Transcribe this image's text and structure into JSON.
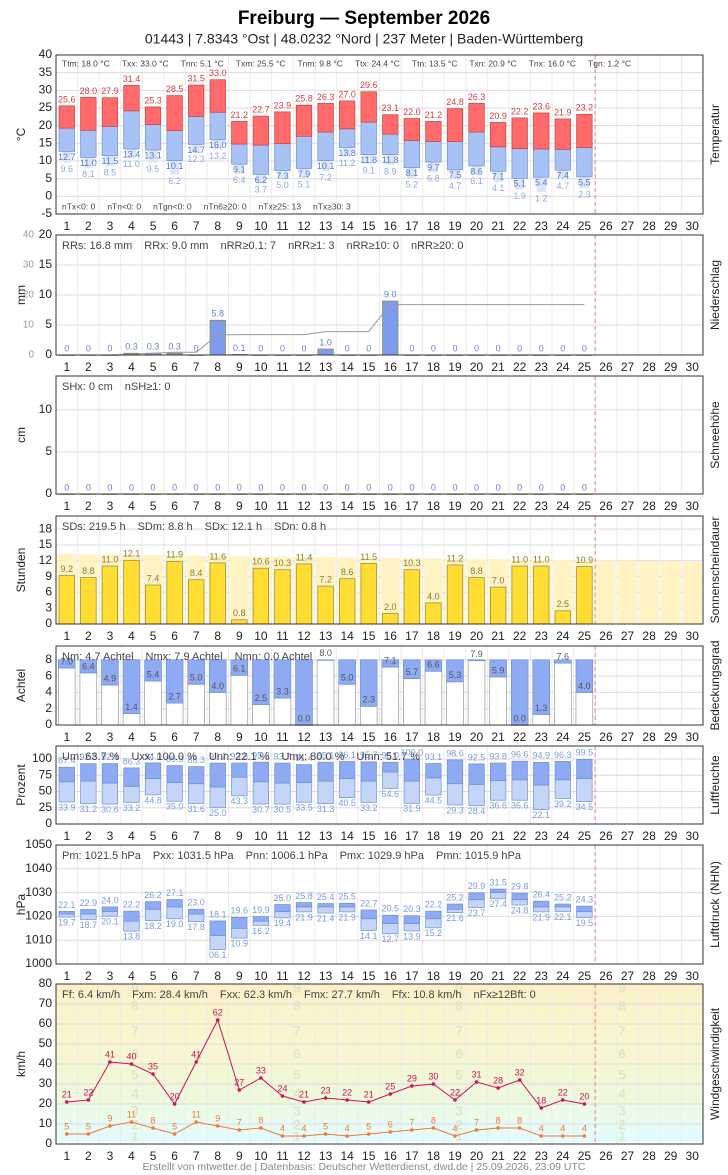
{
  "title": "Freiburg  —  September 2026",
  "subtitle": "01443  |  7.8343 °Ost  |  48.0232 °Nord  |  237 Meter  |  Baden-Württemberg",
  "footer": "Erstellt von mtwetter.de | Datenbasis: Deutscher Wetterdienst, dwd.de | 25.09.2026, 23:09 UTC",
  "days": [
    "1",
    "2",
    "3",
    "4",
    "5",
    "6",
    "7",
    "8",
    "9",
    "10",
    "11",
    "12",
    "13",
    "14",
    "15",
    "16",
    "17",
    "18",
    "19",
    "20",
    "21",
    "22",
    "23",
    "24",
    "25",
    "26",
    "27",
    "28",
    "29",
    "30"
  ],
  "chart_data": [
    {
      "type": "rangebar",
      "axis_label": "°C",
      "side_label": "Temperatur",
      "ylim": [
        -5,
        40
      ],
      "yticks": [
        -5,
        0,
        5,
        10,
        15,
        20,
        25,
        30,
        35,
        40
      ],
      "grid": true,
      "colors": [
        "#ff6b6b",
        "#a9c2f5",
        "#dce6fb"
      ],
      "label_colors": [
        "#d04040",
        "#5577cc",
        "#8fa8e0"
      ],
      "stats": [
        "Ttm: 18.0 °C",
        "Txx: 33.0 °C",
        "Tnn: 5.1 °C",
        "Txm: 25.5 °C",
        "Tnm: 9.8 °C",
        "Ttx: 24.4 °C",
        "Ttn: 13.5 °C",
        "Txn: 20.9 °C",
        "Tnx: 16.0 °C",
        "Tgn: 1.2 °C"
      ],
      "stats2": [
        "nTx<0: 0",
        "nTn<0: 0",
        "nTgn<0: 0",
        "nTn6≥20: 0",
        "nTx≥25: 13",
        "nTx≥30: 3"
      ],
      "max": [
        25.6,
        28.0,
        27.9,
        31.4,
        25.3,
        28.5,
        31.5,
        33.0,
        21.2,
        22.7,
        23.9,
        25.8,
        26.3,
        27.0,
        29.6,
        23.1,
        22.0,
        21.2,
        24.8,
        26.3,
        20.9,
        22.2,
        23.6,
        21.9,
        23.2
      ],
      "max_labels": [
        "25.6",
        "28.0",
        "27.9",
        "31.4",
        "25.3",
        "28.5",
        "31.5",
        "33.0",
        "21.2",
        "22.7",
        "23.9",
        "25.8",
        "26.3",
        "27.0",
        "29.6",
        "23.1",
        "22.0",
        "21.2",
        "24.8",
        "26.3",
        "20.9",
        "22.2",
        "23.6",
        "21.9",
        "23.2"
      ],
      "mean": [
        19.3,
        18.7,
        19.8,
        24.2,
        20.3,
        18.6,
        22.6,
        23.8,
        14.8,
        14.5,
        14.9,
        17.0,
        18.2,
        19.1,
        21.0,
        17.6,
        15.8,
        15.5,
        15.5,
        18.2,
        14.0,
        13.5,
        13.4,
        13.3,
        13.8
      ],
      "min": [
        12.7,
        11.0,
        11.5,
        13.4,
        13.1,
        10.1,
        14.7,
        16.0,
        9.1,
        6.2,
        7.3,
        7.9,
        10.1,
        13.8,
        11.8,
        11.8,
        8.1,
        9.7,
        7.5,
        8.6,
        7.1,
        5.1,
        5.4,
        7.4,
        5.5
      ],
      "min_labels": [
        "12.7",
        "11.0",
        "11.5",
        "13.4",
        "13.1",
        "10.1",
        "14.7",
        "16.0",
        "9.1",
        "6.2",
        "7.3",
        "7.9",
        "10.1",
        "13.8",
        "11.8",
        "11.8",
        "8.1",
        "9.7",
        "7.5",
        "8.6",
        "7.1",
        "5.1",
        "5.4",
        "7.4",
        "5.5"
      ],
      "ground": [
        9.6,
        8.1,
        8.5,
        11.0,
        9.5,
        6.2,
        12.3,
        13.2,
        6.4,
        3.7,
        5.0,
        5.1,
        7.2,
        11.2,
        9.1,
        8.9,
        5.2,
        6.8,
        4.7,
        6.1,
        4.1,
        1.9,
        1.2,
        4.7,
        2.3
      ],
      "ground_labels": [
        "9.6",
        "8.1",
        "8.5",
        "11.0",
        "9.5",
        "6.2",
        "12.3",
        "13.2",
        "6.4",
        "3.7",
        "5.0",
        "5.1",
        "7.2",
        "11.2",
        "9.1",
        "8.9",
        "5.2",
        "6.8",
        "4.7",
        "6.1",
        "4.1",
        "1.9",
        "1.2",
        "4.7",
        "2.3"
      ]
    },
    {
      "type": "bar",
      "axis_label": "mm",
      "side_label": "Niederschlag",
      "ylim": [
        0,
        20
      ],
      "yticks": [
        0,
        5,
        10,
        15,
        20
      ],
      "y2lim": [
        0,
        40
      ],
      "y2ticks": [
        0,
        10,
        20,
        30,
        40
      ],
      "grid": true,
      "colors": [
        "#7d9cf0"
      ],
      "label_color": "#6680cc",
      "line_color": "#999999",
      "stats": [
        "RRs: 16.8 mm",
        "RRx: 9.0 mm",
        "nRR≥0.1: 7",
        "nRR≥1: 3",
        "nRR≥10: 0",
        "nRR≥20: 0"
      ],
      "values": [
        0,
        0,
        0,
        0.3,
        0.3,
        0.3,
        0,
        5.8,
        0.1,
        0,
        0,
        0,
        1.0,
        0,
        0,
        9.0,
        0,
        0,
        0,
        0,
        0,
        0,
        0,
        0,
        0
      ],
      "value_labels": [
        "0",
        "0",
        "0",
        "0.3",
        "0.3",
        "0.3",
        "0",
        "5.8",
        "0.1",
        "0",
        "0",
        "0",
        "1.0",
        "0",
        "0",
        "9.0",
        "0",
        "0",
        "0",
        "0",
        "0",
        "0",
        "0",
        "0",
        "0"
      ],
      "sum": [
        0,
        0,
        0,
        0.3,
        0.6,
        0.9,
        0.9,
        6.7,
        6.8,
        6.8,
        6.8,
        6.8,
        7.8,
        7.8,
        7.8,
        16.8,
        16.8,
        16.8,
        16.8,
        16.8,
        16.8,
        16.8,
        16.8,
        16.8,
        16.8
      ]
    },
    {
      "type": "bar",
      "axis_label": "cm",
      "side_label": "Schneehöhe",
      "ylim": [
        0,
        14
      ],
      "yticks": [
        0,
        5,
        10
      ],
      "grid": true,
      "colors": [
        "#7d9cf0"
      ],
      "label_color": "#6680cc",
      "stats": [
        "SHx: 0 cm",
        "nSH≥1: 0"
      ],
      "values": [
        0,
        0,
        0,
        0,
        0,
        0,
        0,
        0,
        0,
        0,
        0,
        0,
        0,
        0,
        0,
        0,
        0,
        0,
        0,
        0,
        0,
        0,
        0,
        0,
        0
      ]
    },
    {
      "type": "bar",
      "axis_label": "Stunden",
      "side_label": "Sonnenscheindauer",
      "ylim": [
        0,
        20.5
      ],
      "yticks": [
        0,
        3,
        6,
        9,
        12,
        15,
        18
      ],
      "grid": true,
      "colors": [
        "#ffdd33",
        "#fff3c4"
      ],
      "label_color": "#8a7a30",
      "stats": [
        "SDs: 219.5 h",
        "SDm: 8.8 h",
        "SDx: 12.1 h",
        "SDn: 0.8 h"
      ],
      "values": [
        9.2,
        8.8,
        11.0,
        12.1,
        7.4,
        11.9,
        8.4,
        11.6,
        0.8,
        10.6,
        10.3,
        11.4,
        7.2,
        8.6,
        11.5,
        2.0,
        10.3,
        4.0,
        11.2,
        8.8,
        7.0,
        11.0,
        11.0,
        2.5,
        10.9
      ],
      "value_labels": [
        "9.2",
        "8.8",
        "11.0",
        "12.1",
        "7.4",
        "11.9",
        "8.4",
        "11.6",
        "0.8",
        "10.6",
        "10.3",
        "11.4",
        "7.2",
        "8.6",
        "11.5",
        "2.0",
        "10.3",
        "4.0",
        "11.2",
        "8.8",
        "7.0",
        "11.0",
        "11.0",
        "2.5",
        "10.9"
      ],
      "possible": [
        13.3,
        13.2,
        13.2,
        13.1,
        13.1,
        13.0,
        13.0,
        12.9,
        12.9,
        12.8,
        12.8,
        12.7,
        12.7,
        12.6,
        12.6,
        12.5,
        12.5,
        12.4,
        12.4,
        12.3,
        12.3,
        12.2,
        12.2,
        12.1,
        12.1,
        12.0,
        12.0,
        11.9,
        11.9,
        11.8
      ]
    },
    {
      "type": "cloud",
      "axis_label": "Achtel",
      "side_label": "Bedeckungsgrad",
      "ylim": [
        0,
        9.7
      ],
      "yticks": [
        0,
        2,
        4,
        6,
        8
      ],
      "grid": true,
      "full": 8,
      "colors": [
        "#8eaaf2",
        "#ffffff"
      ],
      "label_color": "#555555",
      "stats": [
        "Nm: 4.7 Achtel",
        "Nmx: 7.9 Achtel",
        "Nmn: 0.0 Achtel"
      ],
      "values": [
        7.0,
        6.4,
        4.9,
        1.4,
        5.4,
        2.7,
        5.0,
        4.0,
        6.1,
        2.5,
        3.3,
        0.0,
        8.0,
        5.0,
        2.3,
        7.1,
        5.7,
        6.6,
        5.3,
        7.9,
        5.9,
        0.0,
        1.3,
        7.6,
        4.0
      ],
      "value_labels": [
        "7.0",
        "6.4",
        "4.9",
        "1.4",
        "5.4",
        "2.7",
        "5.0",
        "4.0",
        "6.1",
        "2.5",
        "3.3",
        "0.0",
        "8.0",
        "5.0",
        "2.3",
        "7.1",
        "5.7",
        "6.6",
        "5.3",
        "7.9",
        "5.9",
        "0.0",
        "1.3",
        "7.6",
        "4.0"
      ]
    },
    {
      "type": "rangebar",
      "axis_label": "Prozent",
      "side_label": "Luftfeuchte",
      "ylim": [
        0,
        120
      ],
      "yticks": [
        0,
        25,
        50,
        75,
        100
      ],
      "grid": true,
      "colors": [
        "#8eaaf2",
        "#c4d5f8"
      ],
      "label_colors": [
        "#7c9ae0",
        "#7c9ae0"
      ],
      "stats": [
        "Um: 63.7 %",
        "Uxx: 100.0 %",
        "Unn: 22.1 %",
        "Umx: 80.0 %",
        "Umn: 51.7 %"
      ],
      "max": [
        87.4,
        92.8,
        92.9,
        86.3,
        94.0,
        89.9,
        88.3,
        93.7,
        93.8,
        95.2,
        93.7,
        91.4,
        95.1,
        96.1,
        95.7,
        95.0,
        100.0,
        93.1,
        98.6,
        92.5,
        93.8,
        96.6,
        94.9,
        96.3,
        99.5
      ],
      "max_labels": [
        "87.4",
        "92.8",
        "92.9",
        "86.3",
        "94.0",
        "89.9",
        "88.3",
        "93.7",
        "93.8",
        "95.2",
        "93.7",
        "91.4",
        "95.1",
        "96.1",
        "95.7",
        "95.0",
        "100.0",
        "93.1",
        "98.6",
        "92.5",
        "93.8",
        "96.6",
        "94.9",
        "96.3",
        "99.5"
      ],
      "mean": [
        65,
        66,
        63,
        58,
        70,
        64,
        62,
        57,
        72,
        65,
        63,
        64,
        66,
        70,
        66,
        80,
        66,
        71,
        62,
        61,
        67,
        68,
        60,
        68,
        70
      ],
      "min": [
        33.9,
        31.2,
        30.6,
        33.2,
        44.8,
        35.0,
        31.6,
        25.0,
        43.3,
        30.7,
        30.5,
        33.5,
        31.3,
        40.5,
        33.2,
        54.6,
        31.9,
        44.5,
        29.3,
        28.4,
        36.6,
        36.6,
        22.1,
        39.2,
        34.5
      ],
      "min_labels": [
        "33.9",
        "31.2",
        "30.6",
        "33.2",
        "44.8",
        "35.0",
        "31.6",
        "25.0",
        "43.3",
        "30.7",
        "30.5",
        "33.5",
        "31.3",
        "40.5",
        "33.2",
        "54.6",
        "31.9",
        "44.5",
        "29.3",
        "28.4",
        "36.6",
        "36.6",
        "22.1",
        "39.2",
        "34.5"
      ]
    },
    {
      "type": "rangebar",
      "axis_label": "hPa",
      "side_label": "Luftdruck (NHN)",
      "ylim": [
        1000,
        1050
      ],
      "yticks": [
        1000,
        1010,
        1020,
        1030,
        1040,
        1050
      ],
      "grid": true,
      "colors": [
        "#8eaaf2",
        "#c4d5f8"
      ],
      "label_colors": [
        "#7c9ae0",
        "#7c9ae0"
      ],
      "stats": [
        "Pm: 1021.5 hPa",
        "Pxx: 1031.5 hPa",
        "Pnn: 1006.1 hPa",
        "Pmx: 1029.9 hPa",
        "Pmn: 1015.9 hPa"
      ],
      "max": [
        1022.1,
        1022.9,
        1024.0,
        1022.2,
        1026.2,
        1027.1,
        1023.0,
        1018.1,
        1019.6,
        1019.9,
        1025.0,
        1025.8,
        1025.4,
        1025.5,
        1022.7,
        1020.5,
        1020.3,
        1022.2,
        1025.2,
        1029.9,
        1031.5,
        1029.8,
        1026.4,
        1025.2,
        1024.3
      ],
      "max_labels": [
        "22.1",
        "22.9",
        "24.0",
        "22.2",
        "26.2",
        "27.1",
        "23.0",
        "18.1",
        "19.6",
        "19.9",
        "25.0",
        "25.8",
        "25.4",
        "25.5",
        "22.7",
        "20.5",
        "20.3",
        "22.2",
        "25.2",
        "29.9",
        "31.5",
        "29.8",
        "26.4",
        "25.2",
        "24.3"
      ],
      "mean": [
        1021,
        1021,
        1022,
        1018,
        1023,
        1024,
        1021,
        1012,
        1015,
        1018,
        1022,
        1024,
        1024,
        1024,
        1019,
        1017,
        1017,
        1019,
        1023,
        1027,
        1030,
        1027,
        1024,
        1024,
        1022
      ],
      "min": [
        1019.7,
        1018.7,
        1020.1,
        1013.8,
        1018.2,
        1019.0,
        1017.8,
        1006.1,
        1010.9,
        1016.2,
        1019.4,
        1021.9,
        1021.4,
        1021.9,
        1014.1,
        1012.7,
        1013.9,
        1015.2,
        1021.6,
        1023.7,
        1027.4,
        1024.8,
        1021.9,
        1022.1,
        1019.5
      ],
      "min_labels": [
        "19.7",
        "18.7",
        "20.1",
        "13.8",
        "18.2",
        "19.0",
        "17.8",
        "06.1",
        "10.9",
        "16.2",
        "19.4",
        "21.9",
        "21.4",
        "21.9",
        "14.1",
        "12.7",
        "13.9",
        "15.2",
        "21.6",
        "23.7",
        "27.4",
        "24.8",
        "21.9",
        "22.1",
        "19.5"
      ]
    },
    {
      "type": "wind",
      "axis_label": "km/h",
      "side_label": "Windgeschwindigkeit",
      "ylim": [
        0,
        80
      ],
      "yticks": [
        0,
        10,
        20,
        30,
        40,
        50,
        60,
        70,
        80
      ],
      "grid": true,
      "stats": [
        "Ff: 6.4 km/h",
        "Fxm: 28.4 km/h",
        "Fxx: 62.3 km/h",
        "Fmx: 27.7 km/h",
        "Ffx: 10.8 km/h",
        "nFx≥12Bft: 0"
      ],
      "bands": [
        {
          "from": 1,
          "to": 6,
          "label": "1",
          "color": "#e4fbfd"
        },
        {
          "from": 6,
          "to": 12,
          "label": "2",
          "color": "#e6fbf4"
        },
        {
          "from": 12,
          "to": 20,
          "label": "3",
          "color": "#eafbe8"
        },
        {
          "from": 20,
          "to": 29,
          "label": "4",
          "color": "#eef9dc"
        },
        {
          "from": 29,
          "to": 39,
          "label": "5",
          "color": "#f2f8d6"
        },
        {
          "from": 39,
          "to": 50,
          "label": "6",
          "color": "#f6f7d2"
        },
        {
          "from": 50,
          "to": 62,
          "label": "7",
          "color": "#faf5cf"
        },
        {
          "from": 62,
          "to": 75,
          "label": "8",
          "color": "#fcf2cc"
        },
        {
          "from": 75,
          "to": 89,
          "label": "9",
          "color": "#fdf0c8"
        }
      ],
      "series": [
        {
          "color": "#d0105a",
          "values": [
            21,
            22,
            41,
            40,
            35,
            20,
            41,
            62,
            27,
            33,
            24,
            21,
            23,
            22,
            21,
            25,
            29,
            30,
            22,
            31,
            28,
            32,
            18,
            22,
            20
          ]
        },
        {
          "color": "#f07838",
          "values": [
            5,
            5,
            9,
            11,
            8,
            5,
            11,
            9,
            7,
            8,
            4,
            4,
            5,
            4,
            5,
            6,
            7,
            8,
            4,
            7,
            8,
            8,
            4,
            4,
            4
          ]
        }
      ]
    }
  ]
}
